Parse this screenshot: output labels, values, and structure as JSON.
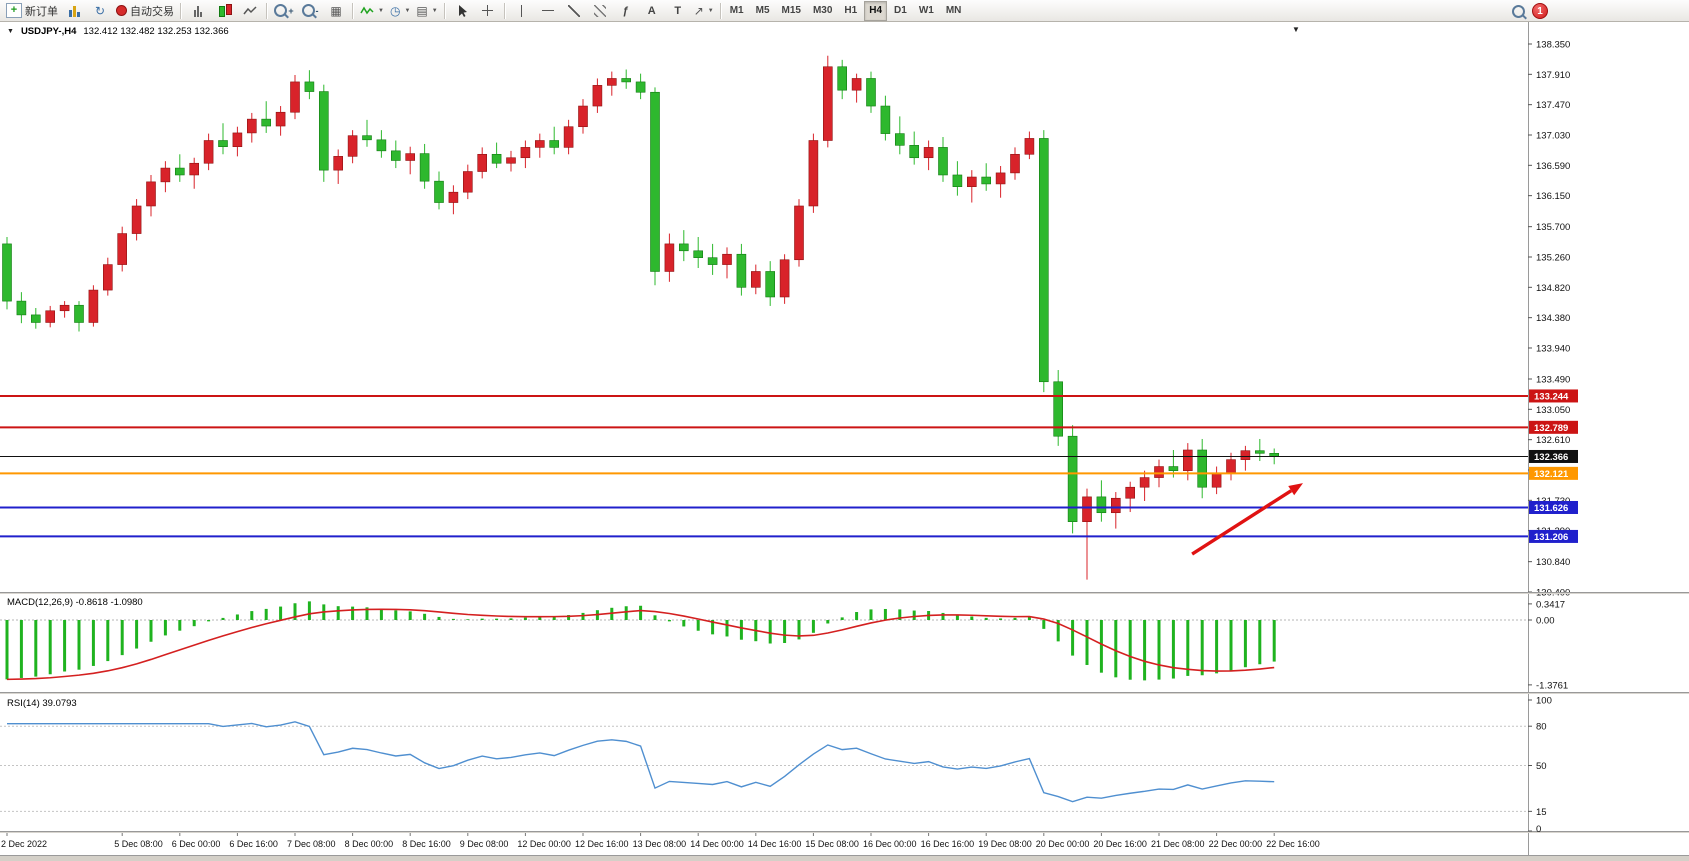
{
  "toolbar": {
    "new_order_label": "新订单",
    "autotrade_label": "自动交易",
    "timeframes": [
      "M1",
      "M5",
      "M15",
      "M30",
      "H1",
      "H4",
      "D1",
      "W1",
      "MN"
    ],
    "active_timeframe": "H4",
    "notification_count": "1"
  },
  "chart_data": {
    "type": "candlestick",
    "symbol_header": "USDJPY-,H4",
    "ohlc_text": "132.412 132.482 132.253 132.366",
    "timeframe": "H4",
    "colors": {
      "bull": "#d8232a",
      "bear": "#2eb82e",
      "macd_hist": "#1fb31f",
      "macd_signal": "#d42020",
      "rsi_line": "#4f8fd0",
      "arrow": "#e01212"
    },
    "price_axis_ticks": [
      "138.350",
      "137.910",
      "137.470",
      "137.030",
      "136.590",
      "136.150",
      "135.700",
      "135.260",
      "134.820",
      "134.380",
      "133.940",
      "133.490",
      "133.050",
      "132.610",
      "132.170",
      "131.730",
      "131.290",
      "130.840",
      "130.400"
    ],
    "hlines": [
      {
        "price": 133.244,
        "label": "133.244",
        "color": "#cc1414",
        "width": 2
      },
      {
        "price": 132.789,
        "label": "132.789",
        "color": "#cc1414",
        "width": 2
      },
      {
        "price": 132.366,
        "label": "132.366",
        "color": "#111111",
        "width": 1
      },
      {
        "price": 132.121,
        "label": "132.121",
        "color": "#ff9800",
        "width": 2
      },
      {
        "price": 131.626,
        "label": "131.626",
        "color": "#2020cc",
        "width": 2
      },
      {
        "price": 131.206,
        "label": "131.206",
        "color": "#2020cc",
        "width": 2
      }
    ],
    "arrow": {
      "from_bar": 82.3,
      "from_price": 130.95,
      "to_bar": 90,
      "to_price": 131.98,
      "color": "#e01212"
    },
    "candles": [
      [
        135.45,
        135.55,
        134.5,
        134.62
      ],
      [
        134.62,
        134.75,
        134.3,
        134.42
      ],
      [
        134.42,
        134.52,
        134.22,
        134.31
      ],
      [
        134.31,
        134.55,
        134.24,
        134.48
      ],
      [
        134.48,
        134.62,
        134.38,
        134.56
      ],
      [
        134.56,
        134.62,
        134.18,
        134.31
      ],
      [
        134.31,
        134.85,
        134.25,
        134.78
      ],
      [
        134.78,
        135.25,
        134.7,
        135.15
      ],
      [
        135.15,
        135.7,
        135.05,
        135.6
      ],
      [
        135.6,
        136.1,
        135.5,
        136.0
      ],
      [
        136.0,
        136.45,
        135.85,
        136.35
      ],
      [
        136.35,
        136.65,
        136.2,
        136.55
      ],
      [
        136.55,
        136.75,
        136.35,
        136.45
      ],
      [
        136.45,
        136.7,
        136.25,
        136.62
      ],
      [
        136.62,
        137.05,
        136.52,
        136.95
      ],
      [
        136.95,
        137.2,
        136.75,
        136.86
      ],
      [
        136.86,
        137.15,
        136.72,
        137.06
      ],
      [
        137.06,
        137.35,
        136.92,
        137.26
      ],
      [
        137.26,
        137.52,
        137.06,
        137.16
      ],
      [
        137.16,
        137.45,
        137.02,
        137.36
      ],
      [
        137.36,
        137.9,
        137.26,
        137.8
      ],
      [
        137.8,
        137.97,
        137.55,
        137.66
      ],
      [
        137.66,
        137.76,
        136.35,
        136.52
      ],
      [
        136.52,
        136.82,
        136.32,
        136.72
      ],
      [
        136.72,
        137.1,
        136.62,
        137.02
      ],
      [
        137.02,
        137.25,
        136.86,
        136.96
      ],
      [
        136.96,
        137.1,
        136.7,
        136.8
      ],
      [
        136.8,
        136.95,
        136.55,
        136.66
      ],
      [
        136.66,
        136.86,
        136.46,
        136.76
      ],
      [
        136.76,
        136.9,
        136.25,
        136.36
      ],
      [
        136.36,
        136.5,
        135.95,
        136.05
      ],
      [
        136.05,
        136.3,
        135.88,
        136.2
      ],
      [
        136.2,
        136.6,
        136.1,
        136.5
      ],
      [
        136.5,
        136.85,
        136.4,
        136.75
      ],
      [
        136.75,
        136.92,
        136.55,
        136.62
      ],
      [
        136.62,
        136.8,
        136.5,
        136.7
      ],
      [
        136.7,
        136.95,
        136.55,
        136.85
      ],
      [
        136.85,
        137.05,
        136.7,
        136.95
      ],
      [
        136.95,
        137.15,
        136.75,
        136.85
      ],
      [
        136.85,
        137.25,
        136.75,
        137.15
      ],
      [
        137.15,
        137.55,
        137.05,
        137.45
      ],
      [
        137.45,
        137.85,
        137.35,
        137.75
      ],
      [
        137.75,
        137.95,
        137.6,
        137.85
      ],
      [
        137.85,
        137.98,
        137.7,
        137.8
      ],
      [
        137.8,
        137.92,
        137.55,
        137.65
      ],
      [
        137.65,
        137.72,
        134.85,
        135.05
      ],
      [
        135.05,
        135.6,
        134.9,
        135.45
      ],
      [
        135.45,
        135.65,
        135.2,
        135.35
      ],
      [
        135.35,
        135.55,
        135.1,
        135.25
      ],
      [
        135.25,
        135.45,
        135.0,
        135.15
      ],
      [
        135.15,
        135.4,
        134.95,
        135.3
      ],
      [
        135.3,
        135.45,
        134.7,
        134.82
      ],
      [
        134.82,
        135.15,
        134.72,
        135.05
      ],
      [
        135.05,
        135.2,
        134.55,
        134.68
      ],
      [
        134.68,
        135.3,
        134.58,
        135.22
      ],
      [
        135.22,
        136.1,
        135.12,
        136.0
      ],
      [
        136.0,
        137.05,
        135.9,
        136.95
      ],
      [
        136.95,
        138.18,
        136.85,
        138.02
      ],
      [
        138.02,
        138.12,
        137.55,
        137.68
      ],
      [
        137.68,
        137.92,
        137.5,
        137.85
      ],
      [
        137.85,
        137.95,
        137.35,
        137.45
      ],
      [
        137.45,
        137.6,
        136.95,
        137.05
      ],
      [
        137.05,
        137.3,
        136.75,
        136.88
      ],
      [
        136.88,
        137.08,
        136.6,
        136.7
      ],
      [
        136.7,
        136.95,
        136.52,
        136.85
      ],
      [
        136.85,
        137.0,
        136.35,
        136.45
      ],
      [
        136.45,
        136.65,
        136.15,
        136.28
      ],
      [
        136.28,
        136.52,
        136.05,
        136.42
      ],
      [
        136.42,
        136.62,
        136.22,
        136.32
      ],
      [
        136.32,
        136.58,
        136.12,
        136.48
      ],
      [
        136.48,
        136.85,
        136.38,
        136.75
      ],
      [
        136.75,
        137.08,
        136.68,
        136.98
      ],
      [
        136.98,
        137.1,
        133.3,
        133.45
      ],
      [
        133.45,
        133.62,
        132.52,
        132.66
      ],
      [
        132.66,
        132.82,
        131.25,
        131.42
      ],
      [
        131.42,
        131.9,
        130.58,
        131.78
      ],
      [
        131.78,
        132.02,
        131.42,
        131.55
      ],
      [
        131.55,
        131.85,
        131.32,
        131.76
      ],
      [
        131.76,
        132.0,
        131.56,
        131.92
      ],
      [
        131.92,
        132.16,
        131.72,
        132.06
      ],
      [
        132.06,
        132.32,
        131.92,
        132.22
      ],
      [
        132.22,
        132.46,
        132.06,
        132.16
      ],
      [
        132.16,
        132.56,
        132.02,
        132.46
      ],
      [
        132.46,
        132.62,
        131.76,
        131.92
      ],
      [
        131.92,
        132.22,
        131.82,
        132.12
      ],
      [
        132.12,
        132.42,
        132.02,
        132.32
      ],
      [
        132.32,
        132.52,
        132.16,
        132.45
      ],
      [
        132.45,
        132.62,
        132.3,
        132.412
      ],
      [
        132.412,
        132.482,
        132.253,
        132.366
      ]
    ],
    "x_labels": [
      {
        "bar": 0,
        "label": "2 Dec 2022"
      },
      {
        "bar": 8,
        "label": "5 Dec 08:00"
      },
      {
        "bar": 12,
        "label": "6 Dec 00:00"
      },
      {
        "bar": 16,
        "label": "6 Dec 16:00"
      },
      {
        "bar": 20,
        "label": "7 Dec 08:00"
      },
      {
        "bar": 24,
        "label": "8 Dec 00:00"
      },
      {
        "bar": 28,
        "label": "8 Dec 16:00"
      },
      {
        "bar": 32,
        "label": "9 Dec 08:00"
      },
      {
        "bar": 36,
        "label": "12 Dec 00:00"
      },
      {
        "bar": 40,
        "label": "12 Dec 16:00"
      },
      {
        "bar": 44,
        "label": "13 Dec 08:00"
      },
      {
        "bar": 48,
        "label": "14 Dec 00:00"
      },
      {
        "bar": 52,
        "label": "14 Dec 16:00"
      },
      {
        "bar": 56,
        "label": "15 Dec 08:00"
      },
      {
        "bar": 60,
        "label": "16 Dec 00:00"
      },
      {
        "bar": 64,
        "label": "16 Dec 16:00"
      },
      {
        "bar": 68,
        "label": "19 Dec 08:00"
      },
      {
        "bar": 72,
        "label": "20 Dec 00:00"
      },
      {
        "bar": 76,
        "label": "20 Dec 16:00"
      },
      {
        "bar": 80,
        "label": "21 Dec 08:00"
      },
      {
        "bar": 84,
        "label": "22 Dec 00:00"
      },
      {
        "bar": 88,
        "label": "22 Dec 16:00"
      }
    ],
    "indicators": {
      "macd": {
        "header": "MACD(12,26,9) -0.8618 -1.0980",
        "params": [
          12,
          26,
          9
        ],
        "main_value": "-0.8618",
        "signal_value": "-1.0980",
        "axis_labels": [
          "0.3417",
          "0.00",
          "-1.3761"
        ]
      },
      "rsi": {
        "header": "RSI(14) 39.0793",
        "period": 14,
        "value": "39.0793",
        "axis_labels": [
          "100",
          "80",
          "50",
          "15",
          "0"
        ],
        "levels": [
          80,
          50,
          15
        ]
      }
    }
  }
}
